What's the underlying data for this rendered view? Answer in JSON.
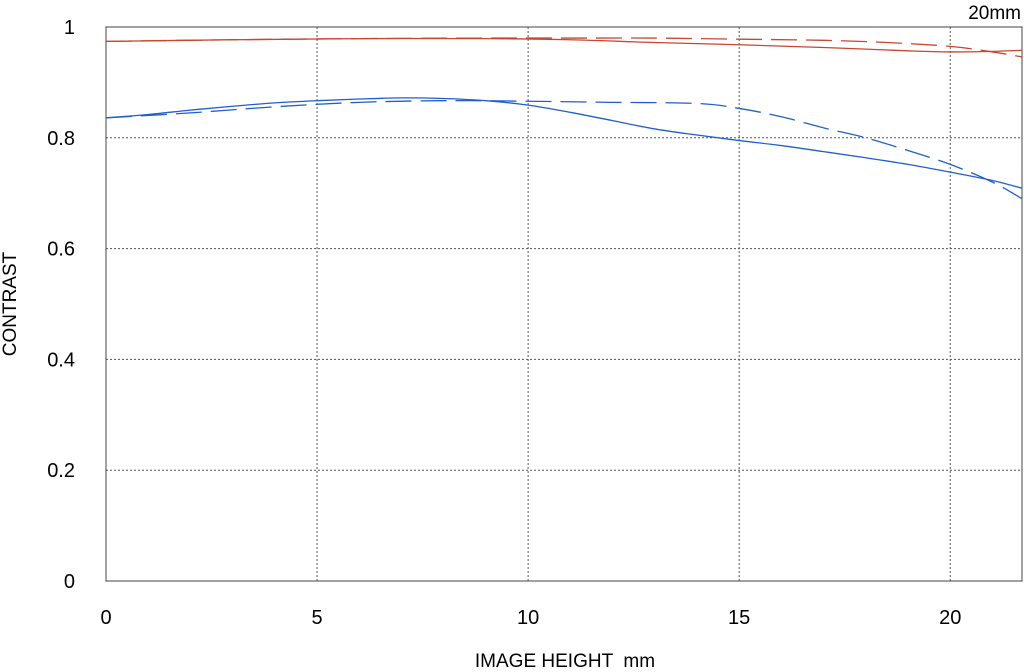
{
  "chart_data": {
    "type": "line",
    "title": "",
    "corner_label": "20mm",
    "xlabel": "IMAGE HEIGHT  mm",
    "ylabel": "CONTRAST",
    "xlim": [
      0,
      21.7
    ],
    "ylim": [
      0,
      1
    ],
    "xticks": [
      0,
      5,
      10,
      15,
      20
    ],
    "yticks": [
      0,
      0.2,
      0.4,
      0.6,
      0.8,
      1
    ],
    "ytick_labels": [
      "0",
      "0.2",
      "0.4",
      "0.6",
      "0.8",
      "1"
    ],
    "grid": true,
    "colors": {
      "red": "#c8472e",
      "blue": "#1f5fcf"
    },
    "series": [
      {
        "color": "red",
        "style": "solid",
        "points": [
          [
            0,
            0.974
          ],
          [
            3,
            0.977
          ],
          [
            6,
            0.979
          ],
          [
            9,
            0.979
          ],
          [
            11,
            0.977
          ],
          [
            13,
            0.972
          ],
          [
            15,
            0.968
          ],
          [
            17,
            0.963
          ],
          [
            19,
            0.957
          ],
          [
            20,
            0.955
          ],
          [
            21,
            0.956
          ],
          [
            21.7,
            0.958
          ]
        ]
      },
      {
        "color": "red",
        "style": "dashed",
        "points": [
          [
            0,
            0.974
          ],
          [
            3,
            0.977
          ],
          [
            6,
            0.979
          ],
          [
            9,
            0.98
          ],
          [
            11,
            0.98
          ],
          [
            13,
            0.98
          ],
          [
            15,
            0.978
          ],
          [
            17,
            0.976
          ],
          [
            18.5,
            0.972
          ],
          [
            20,
            0.965
          ],
          [
            21,
            0.955
          ],
          [
            21.7,
            0.946
          ]
        ]
      },
      {
        "color": "blue",
        "style": "solid",
        "points": [
          [
            0,
            0.836
          ],
          [
            1,
            0.842
          ],
          [
            2,
            0.85
          ],
          [
            3,
            0.857
          ],
          [
            4,
            0.863
          ],
          [
            5,
            0.867
          ],
          [
            6,
            0.87
          ],
          [
            7,
            0.872
          ],
          [
            8,
            0.871
          ],
          [
            9,
            0.867
          ],
          [
            10,
            0.859
          ],
          [
            11,
            0.846
          ],
          [
            12,
            0.831
          ],
          [
            13,
            0.816
          ],
          [
            14,
            0.805
          ],
          [
            15,
            0.795
          ],
          [
            16,
            0.786
          ],
          [
            17,
            0.775
          ],
          [
            18,
            0.764
          ],
          [
            19,
            0.752
          ],
          [
            20,
            0.738
          ],
          [
            21,
            0.723
          ],
          [
            21.7,
            0.709
          ]
        ]
      },
      {
        "color": "blue",
        "style": "dashed",
        "points": [
          [
            0,
            0.836
          ],
          [
            2,
            0.845
          ],
          [
            4,
            0.856
          ],
          [
            6,
            0.864
          ],
          [
            8,
            0.867
          ],
          [
            10,
            0.866
          ],
          [
            12,
            0.864
          ],
          [
            14,
            0.862
          ],
          [
            15,
            0.853
          ],
          [
            16,
            0.838
          ],
          [
            17,
            0.818
          ],
          [
            18,
            0.8
          ],
          [
            19,
            0.777
          ],
          [
            20,
            0.752
          ],
          [
            21,
            0.72
          ],
          [
            21.7,
            0.69
          ]
        ]
      }
    ]
  }
}
